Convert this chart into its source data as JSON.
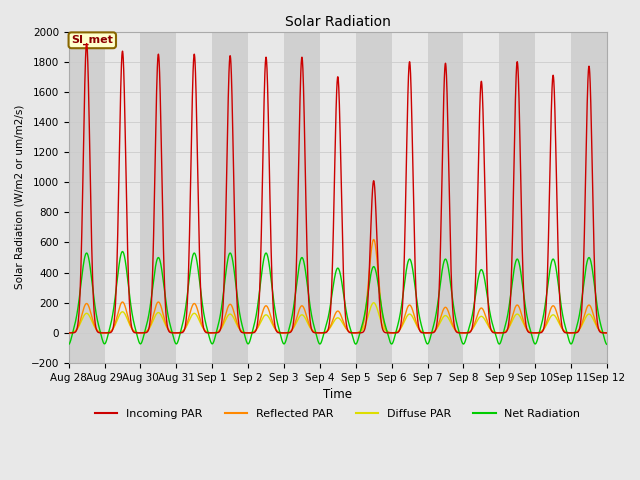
{
  "title": "Solar Radiation",
  "ylabel": "Solar Radiation (W/m2 or um/m2/s)",
  "xlabel": "Time",
  "ylim": [
    -200,
    2000
  ],
  "background_color": "#e8e8e8",
  "plot_bg_color_light": "#e8e8e8",
  "plot_bg_color_dark": "#d0d0d0",
  "annotation_text": "SI_met",
  "annotation_bg": "#ffffcc",
  "annotation_border": "#886600",
  "xtick_labels": [
    "Aug 28",
    "Aug 29",
    "Aug 30",
    "Aug 31",
    "Sep 1",
    "Sep 2",
    "Sep 3",
    "Sep 4",
    "Sep 5",
    "Sep 6",
    "Sep 7",
    "Sep 8",
    "Sep 9",
    "Sep 10",
    "Sep 11",
    "Sep 12"
  ],
  "series": {
    "incoming_par": {
      "color": "#cc0000",
      "label": "Incoming PAR"
    },
    "reflected_par": {
      "color": "#ff8800",
      "label": "Reflected PAR"
    },
    "diffuse_par": {
      "color": "#dddd00",
      "label": "Diffuse PAR"
    },
    "net_radiation": {
      "color": "#00cc00",
      "label": "Net Radiation"
    }
  },
  "num_days": 15,
  "peaks_incoming": [
    1920,
    1870,
    1850,
    1850,
    1840,
    1830,
    1830,
    1700,
    1010,
    1800,
    1790,
    1670,
    1800,
    1710,
    1770
  ],
  "peaks_net": [
    530,
    540,
    500,
    530,
    530,
    530,
    500,
    430,
    440,
    490,
    490,
    420,
    490,
    490,
    500
  ],
  "peaks_reflected": [
    195,
    205,
    205,
    195,
    190,
    180,
    180,
    145,
    620,
    185,
    170,
    165,
    185,
    180,
    185
  ],
  "peaks_diffuse": [
    130,
    140,
    135,
    130,
    125,
    120,
    120,
    100,
    200,
    125,
    115,
    110,
    125,
    120,
    125
  ],
  "night_dip": -80,
  "gridline_color": "#cccccc",
  "tick_fontsize": 7.5,
  "incoming_sigma": 2.2,
  "net_sigma": 3.8,
  "reflected_sigma": 3.2,
  "diffuse_sigma": 3.5
}
